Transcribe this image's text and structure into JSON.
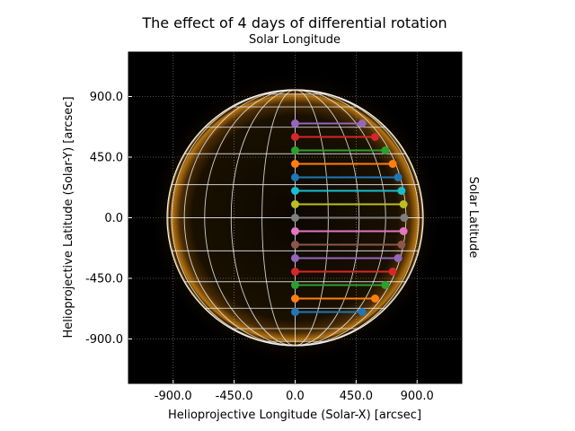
{
  "chart_data": {
    "type": "scatter",
    "title": "The effect of 4 days of differential rotation",
    "top_label": "Solar Longitude",
    "right_label": "Solar Latitude",
    "xlabel": "Helioprojective Longitude (Solar-X) [arcsec]",
    "ylabel": "Helioprojective Latitude (Solar-Y) [arcsec]",
    "xlim": [
      -1230,
      1230
    ],
    "ylim": [
      -1230,
      1230
    ],
    "xticks": [
      "-900.0",
      "-450.0",
      "0.0",
      "450.0",
      "900.0"
    ],
    "yticks": [
      "900.0",
      "450.0",
      "0.0",
      "-450.0",
      "-900.0"
    ],
    "xtick_values": [
      -900,
      -450,
      0,
      450,
      900
    ],
    "ytick_values": [
      900,
      450,
      0,
      -450,
      -900
    ],
    "grid": true,
    "background": "sun image (black with orange corona)",
    "solar_radius": 945,
    "series": [
      {
        "color": "#1f77b4",
        "start": [
          0,
          -700
        ],
        "end": [
          495,
          -700
        ]
      },
      {
        "color": "#ff7f0e",
        "start": [
          0,
          -600
        ],
        "end": [
          590,
          -600
        ]
      },
      {
        "color": "#2ca02c",
        "start": [
          0,
          -500
        ],
        "end": [
          665,
          -500
        ]
      },
      {
        "color": "#d62728",
        "start": [
          0,
          -400
        ],
        "end": [
          720,
          -400
        ]
      },
      {
        "color": "#9467bd",
        "start": [
          0,
          -300
        ],
        "end": [
          760,
          -300
        ]
      },
      {
        "color": "#8c564b",
        "start": [
          0,
          -200
        ],
        "end": [
          785,
          -200
        ]
      },
      {
        "color": "#e377c2",
        "start": [
          0,
          -100
        ],
        "end": [
          800,
          -100
        ]
      },
      {
        "color": "#7f7f7f",
        "start": [
          0,
          0
        ],
        "end": [
          805,
          0
        ]
      },
      {
        "color": "#bcbd22",
        "start": [
          0,
          100
        ],
        "end": [
          800,
          100
        ]
      },
      {
        "color": "#17becf",
        "start": [
          0,
          200
        ],
        "end": [
          785,
          200
        ]
      },
      {
        "color": "#1f77b4",
        "start": [
          0,
          300
        ],
        "end": [
          760,
          300
        ]
      },
      {
        "color": "#ff7f0e",
        "start": [
          0,
          400
        ],
        "end": [
          720,
          400
        ]
      },
      {
        "color": "#2ca02c",
        "start": [
          0,
          500
        ],
        "end": [
          665,
          500
        ]
      },
      {
        "color": "#d62728",
        "start": [
          0,
          600
        ],
        "end": [
          590,
          600
        ]
      },
      {
        "color": "#9467bd",
        "start": [
          0,
          700
        ],
        "end": [
          495,
          700
        ]
      }
    ]
  }
}
